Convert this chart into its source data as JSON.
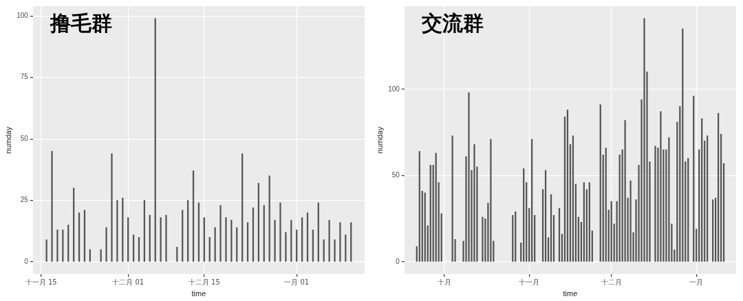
{
  "chart_data": [
    {
      "type": "bar",
      "title": "撸毛群",
      "xlabel": "time",
      "ylabel": "numday",
      "color": "#555555",
      "grid": true,
      "legend": false,
      "categories": [
        null,
        "十一月 15",
        null,
        null,
        null,
        null,
        null,
        null,
        null,
        null,
        null,
        null,
        null,
        null,
        null,
        null,
        null,
        "十二月 01",
        null,
        null,
        null,
        null,
        null,
        null,
        null,
        null,
        null,
        null,
        null,
        null,
        null,
        "十二月 15",
        null,
        null,
        null,
        null,
        null,
        null,
        null,
        null,
        null,
        null,
        null,
        null,
        null,
        null,
        null,
        null,
        "一月 01",
        null,
        null,
        null,
        null,
        null,
        null,
        null,
        null,
        null,
        null,
        null,
        null
      ],
      "values": [
        null,
        null,
        9,
        45,
        13,
        13,
        15,
        30,
        20,
        21,
        5,
        null,
        5,
        14,
        44,
        25,
        26,
        18,
        11,
        10,
        25,
        19,
        99,
        18,
        19,
        null,
        6,
        21,
        25,
        37,
        24,
        18,
        10,
        14,
        23,
        18,
        17,
        14,
        44,
        16,
        22,
        32,
        23,
        35,
        17,
        24,
        12,
        17,
        13,
        18,
        20,
        13,
        24,
        9,
        17,
        9,
        16,
        11,
        16,
        null,
        null
      ],
      "ylim": [
        -4.95,
        103.95
      ],
      "yticks": [
        0,
        25,
        50,
        75,
        100
      ]
    },
    {
      "type": "bar",
      "title": "交流群",
      "xlabel": "time",
      "ylabel": "numday",
      "color": "#555555",
      "grid": true,
      "legend": false,
      "categories": [
        null,
        null,
        null,
        null,
        null,
        null,
        null,
        null,
        null,
        null,
        null,
        null,
        null,
        null,
        "十月",
        null,
        null,
        null,
        null,
        null,
        null,
        null,
        null,
        null,
        null,
        null,
        null,
        null,
        null,
        null,
        null,
        null,
        null,
        null,
        null,
        null,
        null,
        null,
        null,
        null,
        null,
        null,
        null,
        null,
        null,
        "十一月",
        null,
        null,
        null,
        null,
        null,
        null,
        null,
        null,
        null,
        null,
        null,
        null,
        null,
        null,
        null,
        null,
        null,
        null,
        null,
        null,
        null,
        null,
        null,
        null,
        null,
        null,
        null,
        null,
        null,
        "十二月",
        null,
        null,
        null,
        null,
        null,
        null,
        null,
        null,
        null,
        null,
        null,
        null,
        null,
        null,
        null,
        null,
        null,
        null,
        null,
        null,
        null,
        null,
        null,
        null,
        null,
        null,
        null,
        null,
        null,
        null,
        "一月",
        null,
        null,
        null,
        null,
        null,
        null,
        null,
        null,
        null,
        null,
        null,
        null,
        null,
        null
      ],
      "values": [
        null,
        null,
        null,
        null,
        9,
        64,
        41,
        40,
        21,
        56,
        56,
        63,
        46,
        28,
        null,
        null,
        null,
        73,
        13,
        null,
        null,
        12,
        61,
        98,
        53,
        68,
        55,
        null,
        26,
        25,
        34,
        71,
        12,
        null,
        null,
        null,
        null,
        null,
        null,
        27,
        29,
        null,
        11,
        54,
        46,
        31,
        71,
        27,
        null,
        null,
        42,
        53,
        14,
        39,
        27,
        null,
        31,
        16,
        84,
        88,
        68,
        73,
        45,
        26,
        23,
        46,
        42,
        46,
        18,
        null,
        null,
        91,
        62,
        66,
        30,
        35,
        22,
        35,
        62,
        65,
        82,
        37,
        47,
        17,
        36,
        56,
        94,
        141,
        110,
        58,
        null,
        67,
        66,
        87,
        65,
        65,
        72,
        22,
        7,
        81,
        90,
        135,
        58,
        60,
        null,
        96,
        19,
        65,
        83,
        70,
        73,
        null,
        36,
        37,
        86,
        74,
        57,
        null,
        null,
        null,
        null
      ],
      "ylim": [
        -7.05,
        148.05
      ],
      "yticks": [
        0,
        50,
        100
      ]
    }
  ]
}
